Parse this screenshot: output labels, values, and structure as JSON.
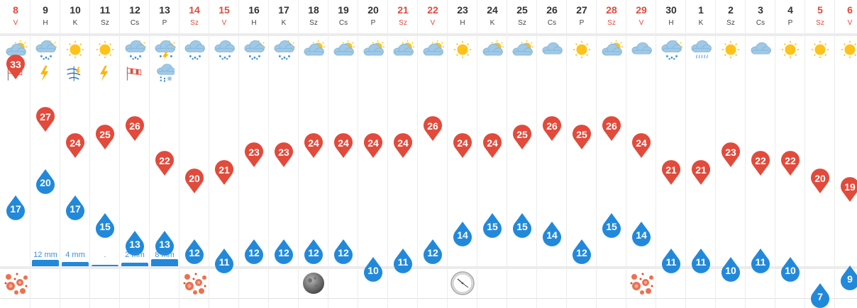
{
  "colors": {
    "max_pin": "#e24a3b",
    "min_drop": "#2289da",
    "weekend_text": "#e24a3b",
    "rain_bar": "#2289da"
  },
  "days": [
    {
      "date": "8",
      "dow": "V",
      "weekend": true,
      "icon": "partly-cloudy-sun-icon",
      "extra": "wind-icon",
      "max": "33",
      "min": "17",
      "event": "flower-icon"
    },
    {
      "date": "9",
      "dow": "H",
      "weekend": false,
      "icon": "rain-cloud-sun-icon",
      "extra": "lightning-icon",
      "max": "27",
      "min": "20",
      "rain": "12 mm",
      "rain_level": 0.85
    },
    {
      "date": "10",
      "dow": "K",
      "weekend": false,
      "icon": "sun-icon",
      "extra": "storm-wind-icon",
      "max": "24",
      "min": "17",
      "rain": "4 mm",
      "rain_level": 0.55
    },
    {
      "date": "11",
      "dow": "Sz",
      "weekend": false,
      "icon": "sun-icon",
      "extra": "lightning-icon",
      "max": "25",
      "min": "15",
      "rain": ".",
      "rain_level": 0.2
    },
    {
      "date": "12",
      "dow": "Cs",
      "weekend": false,
      "icon": "rain-cloud-sun-icon",
      "extra": "wind-icon",
      "max": "26",
      "min": "13",
      "rain": "2 mm",
      "rain_level": 0.45
    },
    {
      "date": "13",
      "dow": "P",
      "weekend": false,
      "icon": "rain-cloud-sun-lightning-icon",
      "extra": "snow-rain-icon",
      "max": "22",
      "min": "13",
      "rain": "8 mm",
      "rain_level": 1.0
    },
    {
      "date": "14",
      "dow": "Sz",
      "weekend": true,
      "icon": "rain-cloud-icon",
      "max": "20",
      "min": "12",
      "event": "flower-icon"
    },
    {
      "date": "15",
      "dow": "V",
      "weekend": true,
      "icon": "rain-cloud-icon",
      "max": "21",
      "min": "11"
    },
    {
      "date": "16",
      "dow": "H",
      "weekend": false,
      "icon": "rain-cloud-sun-icon",
      "max": "23",
      "min": "12"
    },
    {
      "date": "17",
      "dow": "K",
      "weekend": false,
      "icon": "rain-cloud-sun-icon",
      "max": "23",
      "min": "12"
    },
    {
      "date": "18",
      "dow": "Sz",
      "weekend": false,
      "icon": "partly-cloudy-sun-icon",
      "max": "24",
      "min": "12",
      "event": "full-moon-icon"
    },
    {
      "date": "19",
      "dow": "Cs",
      "weekend": false,
      "icon": "partly-cloudy-sun-icon",
      "max": "24",
      "min": "12"
    },
    {
      "date": "20",
      "dow": "P",
      "weekend": false,
      "icon": "partly-cloudy-sun-icon",
      "max": "24",
      "min": "10"
    },
    {
      "date": "21",
      "dow": "Sz",
      "weekend": true,
      "icon": "partly-cloudy-sun-icon",
      "max": "24",
      "min": "11"
    },
    {
      "date": "22",
      "dow": "V",
      "weekend": true,
      "icon": "partly-cloudy-sun-icon",
      "max": "26",
      "min": "12"
    },
    {
      "date": "23",
      "dow": "H",
      "weekend": false,
      "icon": "sun-icon",
      "max": "24",
      "min": "14",
      "event": "clock-icon"
    },
    {
      "date": "24",
      "dow": "K",
      "weekend": false,
      "icon": "partly-cloudy-sun-icon",
      "max": "24",
      "min": "15"
    },
    {
      "date": "25",
      "dow": "Sz",
      "weekend": false,
      "icon": "partly-cloudy-sun-icon",
      "max": "25",
      "min": "15"
    },
    {
      "date": "26",
      "dow": "Cs",
      "weekend": false,
      "icon": "cloud-icon",
      "max": "26",
      "min": "14"
    },
    {
      "date": "27",
      "dow": "P",
      "weekend": false,
      "icon": "sun-icon",
      "max": "25",
      "min": "12"
    },
    {
      "date": "28",
      "dow": "Sz",
      "weekend": true,
      "icon": "partly-cloudy-sun-icon",
      "max": "26",
      "min": "15"
    },
    {
      "date": "29",
      "dow": "V",
      "weekend": true,
      "icon": "cloud-icon",
      "max": "24",
      "min": "14",
      "event": "flower-icon"
    },
    {
      "date": "30",
      "dow": "H",
      "weekend": false,
      "icon": "rain-cloud-sun-icon",
      "max": "21",
      "min": "11"
    },
    {
      "date": "1",
      "dow": "K",
      "weekend": false,
      "icon": "drizzle-cloud-icon",
      "max": "21",
      "min": "11"
    },
    {
      "date": "2",
      "dow": "Sz",
      "weekend": false,
      "icon": "sun-icon",
      "max": "23",
      "min": "10"
    },
    {
      "date": "3",
      "dow": "Cs",
      "weekend": false,
      "icon": "cloud-icon",
      "max": "22",
      "min": "11"
    },
    {
      "date": "4",
      "dow": "P",
      "weekend": false,
      "icon": "sun-icon",
      "max": "22",
      "min": "10"
    },
    {
      "date": "5",
      "dow": "Sz",
      "weekend": true,
      "icon": "sun-icon",
      "max": "20",
      "min": "7"
    },
    {
      "date": "6",
      "dow": "V",
      "weekend": true,
      "icon": "sun-icon",
      "max": "19",
      "min": "9"
    }
  ]
}
